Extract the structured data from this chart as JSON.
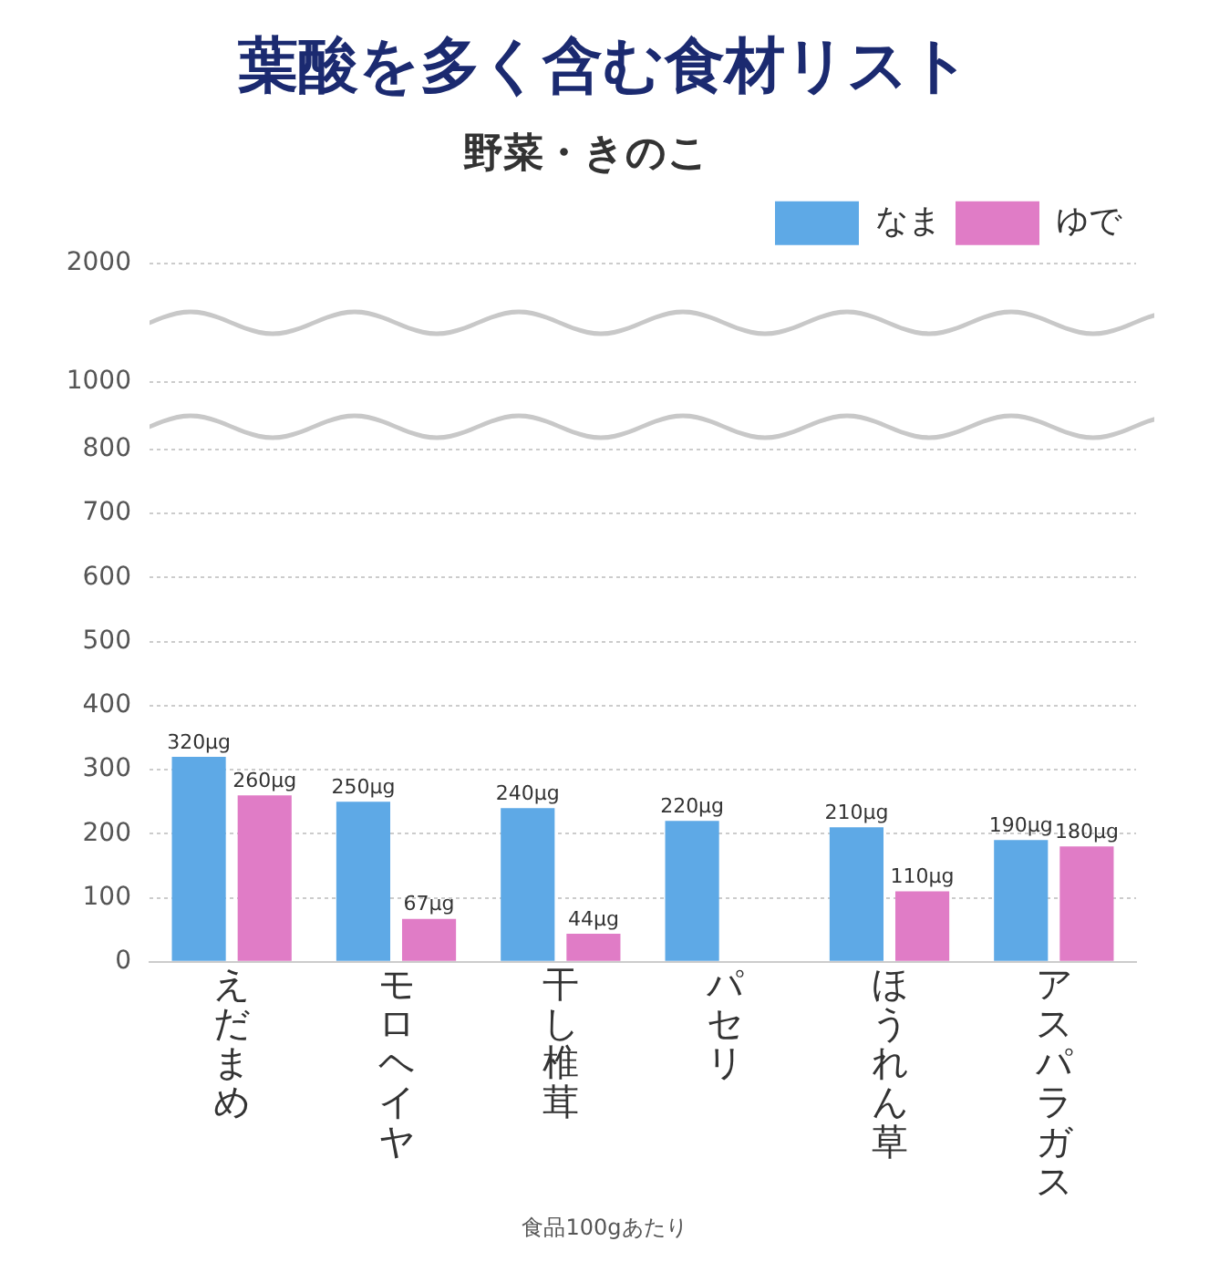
{
  "chart_data": [
    {
      "type": "bar",
      "title": "葉酸を多く含む食材リスト",
      "subtitle": "野菜・きのこ",
      "categories": [
        "えだまめ",
        "モロヘイヤ",
        "干し椎茸",
        "パセリ",
        "ほうれん草",
        "アスパラガス"
      ],
      "series": [
        {
          "name": "なま",
          "color": "#5ea9e6",
          "values": [
            null,
            null,
            null,
            null,
            null,
            null
          ]
        },
        {
          "name": "ゆで",
          "color": "#e07cc6",
          "values": [
            null,
            null,
            null,
            null,
            null,
            null
          ]
        }
      ],
      "ylim": [
        1000,
        2000
      ],
      "yticks": [
        1000,
        2000
      ],
      "grid": "y",
      "legend": "top right",
      "tick_labels": "y"
    },
    {
      "type": "bar",
      "categories": [
        "えだまめ",
        "モロヘイヤ",
        "干し椎茸",
        "パセリ",
        "ほうれん草",
        "アスパラガス"
      ],
      "series": [
        {
          "color": "#5ea9e6",
          "values": [
            320,
            250,
            240,
            220,
            210,
            190
          ],
          "value_labels": [
            "320μg",
            "250μg",
            "240μg",
            "220μg",
            "210μg",
            "190μg"
          ]
        },
        {
          "color": "#e07cc6",
          "values": [
            260,
            67,
            44,
            null,
            110,
            180
          ],
          "value_labels": [
            "260μg",
            "67μg",
            "44μg",
            null,
            "110μg",
            "180μg"
          ]
        }
      ],
      "ylim": [
        0,
        800
      ],
      "yticks": [
        0,
        100,
        200,
        300,
        400,
        500,
        600,
        700,
        800
      ],
      "grid": "y",
      "annotations": [
        "食品100gあたり"
      ]
    }
  ]
}
